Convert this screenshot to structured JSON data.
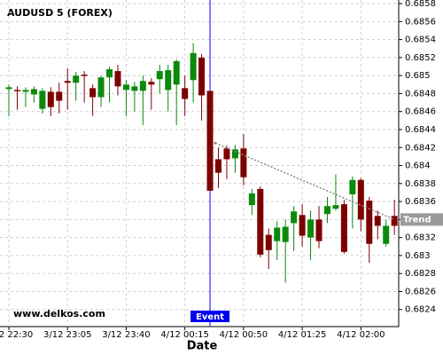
{
  "chart_data": {
    "type": "candlestick",
    "title": "AUDUSD 5 (FOREX)",
    "watermark": "www.delkos.com",
    "x_label": "Date",
    "categories": [
      "3/12 22:30",
      null,
      null,
      null,
      null,
      null,
      null,
      "3/12 23:05",
      null,
      null,
      null,
      null,
      null,
      null,
      "3/12 23:40",
      null,
      null,
      null,
      null,
      null,
      null,
      "4/12 00:15",
      null,
      null,
      null,
      null,
      null,
      null,
      "4/12 00:50",
      null,
      null,
      null,
      null,
      null,
      null,
      "4/12 01:25",
      null,
      null,
      null,
      null,
      null,
      null,
      "4/12 02:00",
      null,
      null,
      null,
      null
    ],
    "open": [
      0.68485,
      0.68484,
      0.68482,
      0.68479,
      0.68463,
      0.68482,
      0.68482,
      0.68494,
      0.68492,
      0.68501,
      0.68486,
      0.68476,
      0.68498,
      0.68505,
      0.68484,
      0.68483,
      0.68483,
      0.68493,
      0.68496,
      0.68484,
      0.6849,
      0.68486,
      0.68495,
      0.6852,
      0.68483,
      0.68407,
      0.68419,
      0.68408,
      0.68419,
      0.68356,
      0.68374,
      0.68323,
      0.68316,
      0.68315,
      0.68336,
      0.68345,
      0.6832,
      0.6834,
      0.68346,
      0.68352,
      0.68357,
      0.68368,
      0.68384,
      0.68361,
      0.68344,
      0.68313,
      0.68344
    ],
    "high": [
      0.6849,
      0.68488,
      0.68487,
      0.68488,
      0.68486,
      0.68487,
      0.68492,
      0.68508,
      0.68504,
      0.68505,
      0.6849,
      0.685,
      0.6851,
      0.68512,
      0.68495,
      0.68493,
      0.685,
      0.68497,
      0.68512,
      0.68512,
      0.68518,
      0.685,
      0.68536,
      0.68524,
      0.68483,
      0.6842,
      0.68422,
      0.68423,
      0.68435,
      0.68374,
      0.68377,
      0.6833,
      0.68338,
      0.6834,
      0.68355,
      0.68357,
      0.6835,
      0.68355,
      0.68365,
      0.6839,
      0.68362,
      0.68388,
      0.68386,
      0.68365,
      0.6835,
      0.6834,
      0.68362
    ],
    "low": [
      0.68455,
      0.68462,
      0.68465,
      0.6847,
      0.68458,
      0.68455,
      0.68458,
      0.68462,
      0.68472,
      0.6847,
      0.68455,
      0.68465,
      0.6847,
      0.68478,
      0.68455,
      0.6846,
      0.68445,
      0.68462,
      0.6848,
      0.6846,
      0.68445,
      0.68455,
      0.6847,
      0.6845,
      0.68372,
      0.68375,
      0.68385,
      0.68392,
      0.68378,
      0.68345,
      0.68298,
      0.68285,
      0.68295,
      0.6827,
      0.68305,
      0.6831,
      0.68295,
      0.68308,
      0.68336,
      0.6835,
      0.68302,
      0.6833,
      0.68327,
      0.68292,
      0.68318,
      0.6831,
      0.68323
    ],
    "close": [
      0.68487,
      0.68483,
      0.68484,
      0.68485,
      0.68483,
      0.68465,
      0.68472,
      0.68492,
      0.685,
      0.685,
      0.68476,
      0.68498,
      0.68507,
      0.68488,
      0.6849,
      0.68488,
      0.68494,
      0.6849,
      0.68505,
      0.68506,
      0.68516,
      0.68474,
      0.68525,
      0.68478,
      0.68372,
      0.68392,
      0.68407,
      0.68418,
      0.68387,
      0.68369,
      0.68301,
      0.68306,
      0.68331,
      0.68332,
      0.68349,
      0.68322,
      0.6834,
      0.68316,
      0.68355,
      0.68356,
      0.68304,
      0.68384,
      0.6834,
      0.68313,
      0.68333,
      0.68333,
      0.68333
    ],
    "up_color": "#0b8a0b",
    "down_color": "#7d0000",
    "ylim": [
      0.68221,
      0.68584
    ],
    "yticks": [
      0.6824,
      0.6826,
      0.6828,
      0.683,
      0.6832,
      0.6834,
      0.6836,
      0.6838,
      0.684,
      0.6842,
      0.6844,
      0.6846,
      0.6848,
      0.685,
      0.6852,
      0.6854,
      0.6856,
      0.6858
    ],
    "grid": true,
    "event": {
      "label": "Event",
      "x": 24,
      "color": "#0000ee"
    },
    "trend": {
      "label": "Trend",
      "x": [
        24,
        46
      ],
      "values": [
        0.68425,
        0.6834
      ],
      "color": "#888888"
    }
  }
}
